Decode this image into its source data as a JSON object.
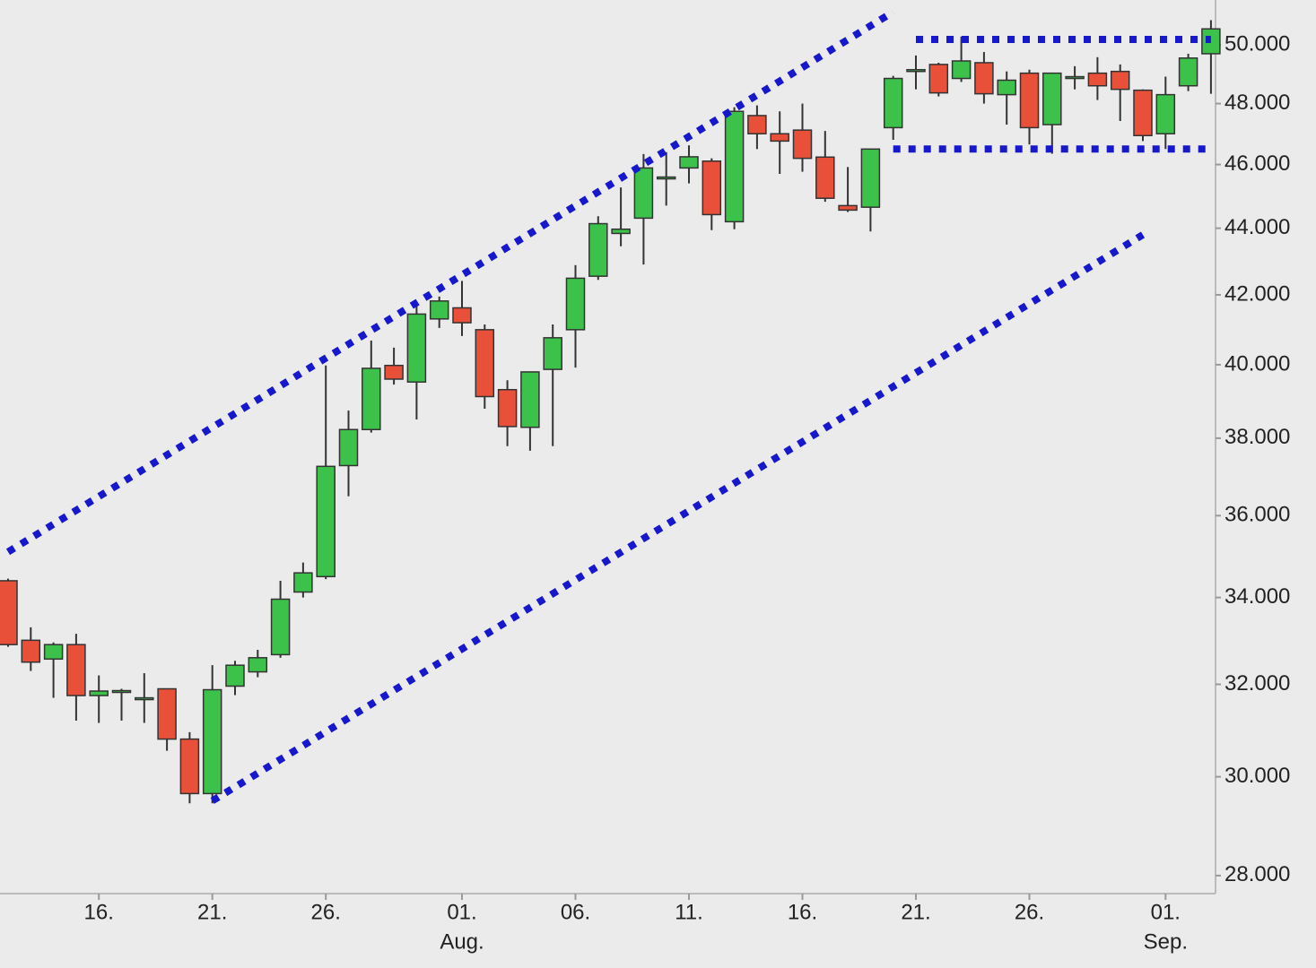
{
  "chart_data": {
    "type": "candlestick",
    "x": [
      "07-12",
      "07-13",
      "07-14",
      "07-15",
      "07-16",
      "07-17",
      "07-18",
      "07-19",
      "07-20",
      "07-21",
      "07-22",
      "07-23",
      "07-24",
      "07-25",
      "07-26",
      "07-27",
      "07-28",
      "07-29",
      "07-30",
      "07-31",
      "08-01",
      "08-02",
      "08-03",
      "08-04",
      "08-05",
      "08-06",
      "08-07",
      "08-08",
      "08-09",
      "08-10",
      "08-11",
      "08-12",
      "08-13",
      "08-14",
      "08-15",
      "08-16",
      "08-17",
      "08-18",
      "08-19",
      "08-20",
      "08-21",
      "08-22",
      "08-23",
      "08-24",
      "08-25",
      "08-26",
      "08-27",
      "08-28",
      "08-29",
      "08-30",
      "08-31",
      "09-01",
      "09-02",
      "09-03"
    ],
    "open": [
      34.4,
      33.0,
      32.57,
      32.9,
      31.75,
      31.84,
      31.7,
      31.9,
      30.8,
      29.65,
      31.96,
      32.28,
      32.67,
      34.13,
      34.5,
      37.28,
      38.23,
      39.98,
      39.52,
      41.3,
      41.62,
      40.99,
      39.31,
      38.29,
      39.87,
      40.99,
      42.55,
      43.84,
      44.31,
      45.6,
      45.89,
      46.11,
      44.2,
      47.6,
      47.0,
      47.12,
      46.24,
      44.7,
      44.65,
      47.2,
      49.15,
      49.33,
      48.85,
      49.39,
      48.3,
      49.03,
      47.3,
      48.91,
      49.03,
      49.09,
      48.45,
      47.0,
      48.6,
      49.7
    ],
    "high": [
      34.45,
      33.3,
      32.95,
      33.15,
      32.2,
      31.9,
      32.25,
      31.9,
      30.95,
      32.43,
      32.53,
      32.78,
      34.4,
      34.84,
      39.98,
      38.74,
      40.68,
      40.48,
      41.7,
      41.95,
      42.41,
      41.14,
      39.57,
      39.8,
      41.14,
      42.88,
      44.37,
      45.27,
      46.34,
      46.4,
      46.62,
      46.2,
      47.88,
      47.94,
      47.74,
      48.0,
      47.09,
      45.92,
      46.5,
      48.94,
      49.64,
      49.39,
      50.3,
      49.76,
      49.09,
      49.15,
      49.03,
      49.27,
      49.58,
      49.33,
      48.48,
      48.91,
      49.7,
      50.88
    ],
    "low": [
      32.85,
      32.3,
      31.7,
      31.2,
      31.15,
      31.2,
      31.15,
      30.55,
      29.45,
      29.45,
      31.76,
      32.16,
      32.6,
      34.0,
      34.44,
      36.49,
      38.15,
      39.45,
      38.5,
      41.04,
      40.81,
      38.79,
      37.79,
      37.67,
      37.79,
      39.92,
      42.44,
      43.45,
      42.9,
      44.7,
      45.4,
      43.94,
      43.97,
      46.5,
      45.7,
      45.77,
      44.82,
      44.5,
      43.9,
      46.8,
      48.48,
      48.24,
      48.73,
      48.0,
      47.3,
      46.65,
      46.35,
      48.48,
      48.12,
      47.42,
      46.76,
      46.5,
      48.42,
      48.33
    ],
    "close": [
      32.9,
      32.5,
      32.9,
      31.75,
      31.85,
      31.86,
      31.7,
      30.8,
      29.65,
      31.88,
      32.43,
      32.6,
      33.96,
      34.59,
      37.26,
      38.23,
      39.9,
      39.6,
      41.44,
      41.82,
      41.19,
      39.12,
      38.31,
      39.8,
      40.76,
      42.49,
      44.14,
      43.97,
      45.89,
      45.6,
      46.25,
      44.42,
      47.74,
      47.0,
      46.76,
      46.2,
      44.93,
      44.56,
      46.5,
      48.85,
      49.15,
      48.36,
      49.45,
      48.33,
      48.79,
      47.2,
      49.03,
      48.91,
      48.6,
      48.48,
      46.94,
      48.3,
      49.55,
      50.57
    ],
    "up_color": "#3cc24a",
    "down_color": "#e8503a",
    "ylim": [
      27.65,
      51.6
    ],
    "log_scale": true,
    "yticks": [
      {
        "value": 28,
        "label": "28.000"
      },
      {
        "value": 30,
        "label": "30.000"
      },
      {
        "value": 32,
        "label": "32.000"
      },
      {
        "value": 34,
        "label": "34.000"
      },
      {
        "value": 36,
        "label": "36.000"
      },
      {
        "value": 38,
        "label": "38.000"
      },
      {
        "value": 40,
        "label": "40.000"
      },
      {
        "value": 42,
        "label": "42.000"
      },
      {
        "value": 44,
        "label": "44.000"
      },
      {
        "value": 46,
        "label": "46.000"
      },
      {
        "value": 48,
        "label": "48.000"
      },
      {
        "value": 50,
        "label": "50.000"
      }
    ],
    "xticks": [
      {
        "value": "07-16",
        "label": "16."
      },
      {
        "value": "07-21",
        "label": "21."
      },
      {
        "value": "07-26",
        "label": "26."
      },
      {
        "value": "08-01",
        "label": "01."
      },
      {
        "value": "08-06",
        "label": "06."
      },
      {
        "value": "08-11",
        "label": "11."
      },
      {
        "value": "08-16",
        "label": "16."
      },
      {
        "value": "08-21",
        "label": "21."
      },
      {
        "value": "08-26",
        "label": "26."
      },
      {
        "value": "09-01",
        "label": "01."
      }
    ],
    "month_labels": [
      {
        "value": "08-01",
        "label": "Aug."
      },
      {
        "value": "09-01",
        "label": "Sep."
      }
    ],
    "trendlines": [
      {
        "x": [
          "07-12",
          "08-20"
        ],
        "y": [
          35.1,
          51.17
        ],
        "color": "#1717cc"
      },
      {
        "x": [
          "07-21",
          "08-31"
        ],
        "y": [
          29.5,
          43.8
        ],
        "color": "#1717cc"
      },
      {
        "x": [
          "08-21",
          "09-03"
        ],
        "y": [
          50.2,
          50.2
        ],
        "color": "#1717cc"
      },
      {
        "x": [
          "08-20",
          "09-03"
        ],
        "y": [
          46.5,
          46.5
        ],
        "color": "#1717cc"
      }
    ]
  }
}
